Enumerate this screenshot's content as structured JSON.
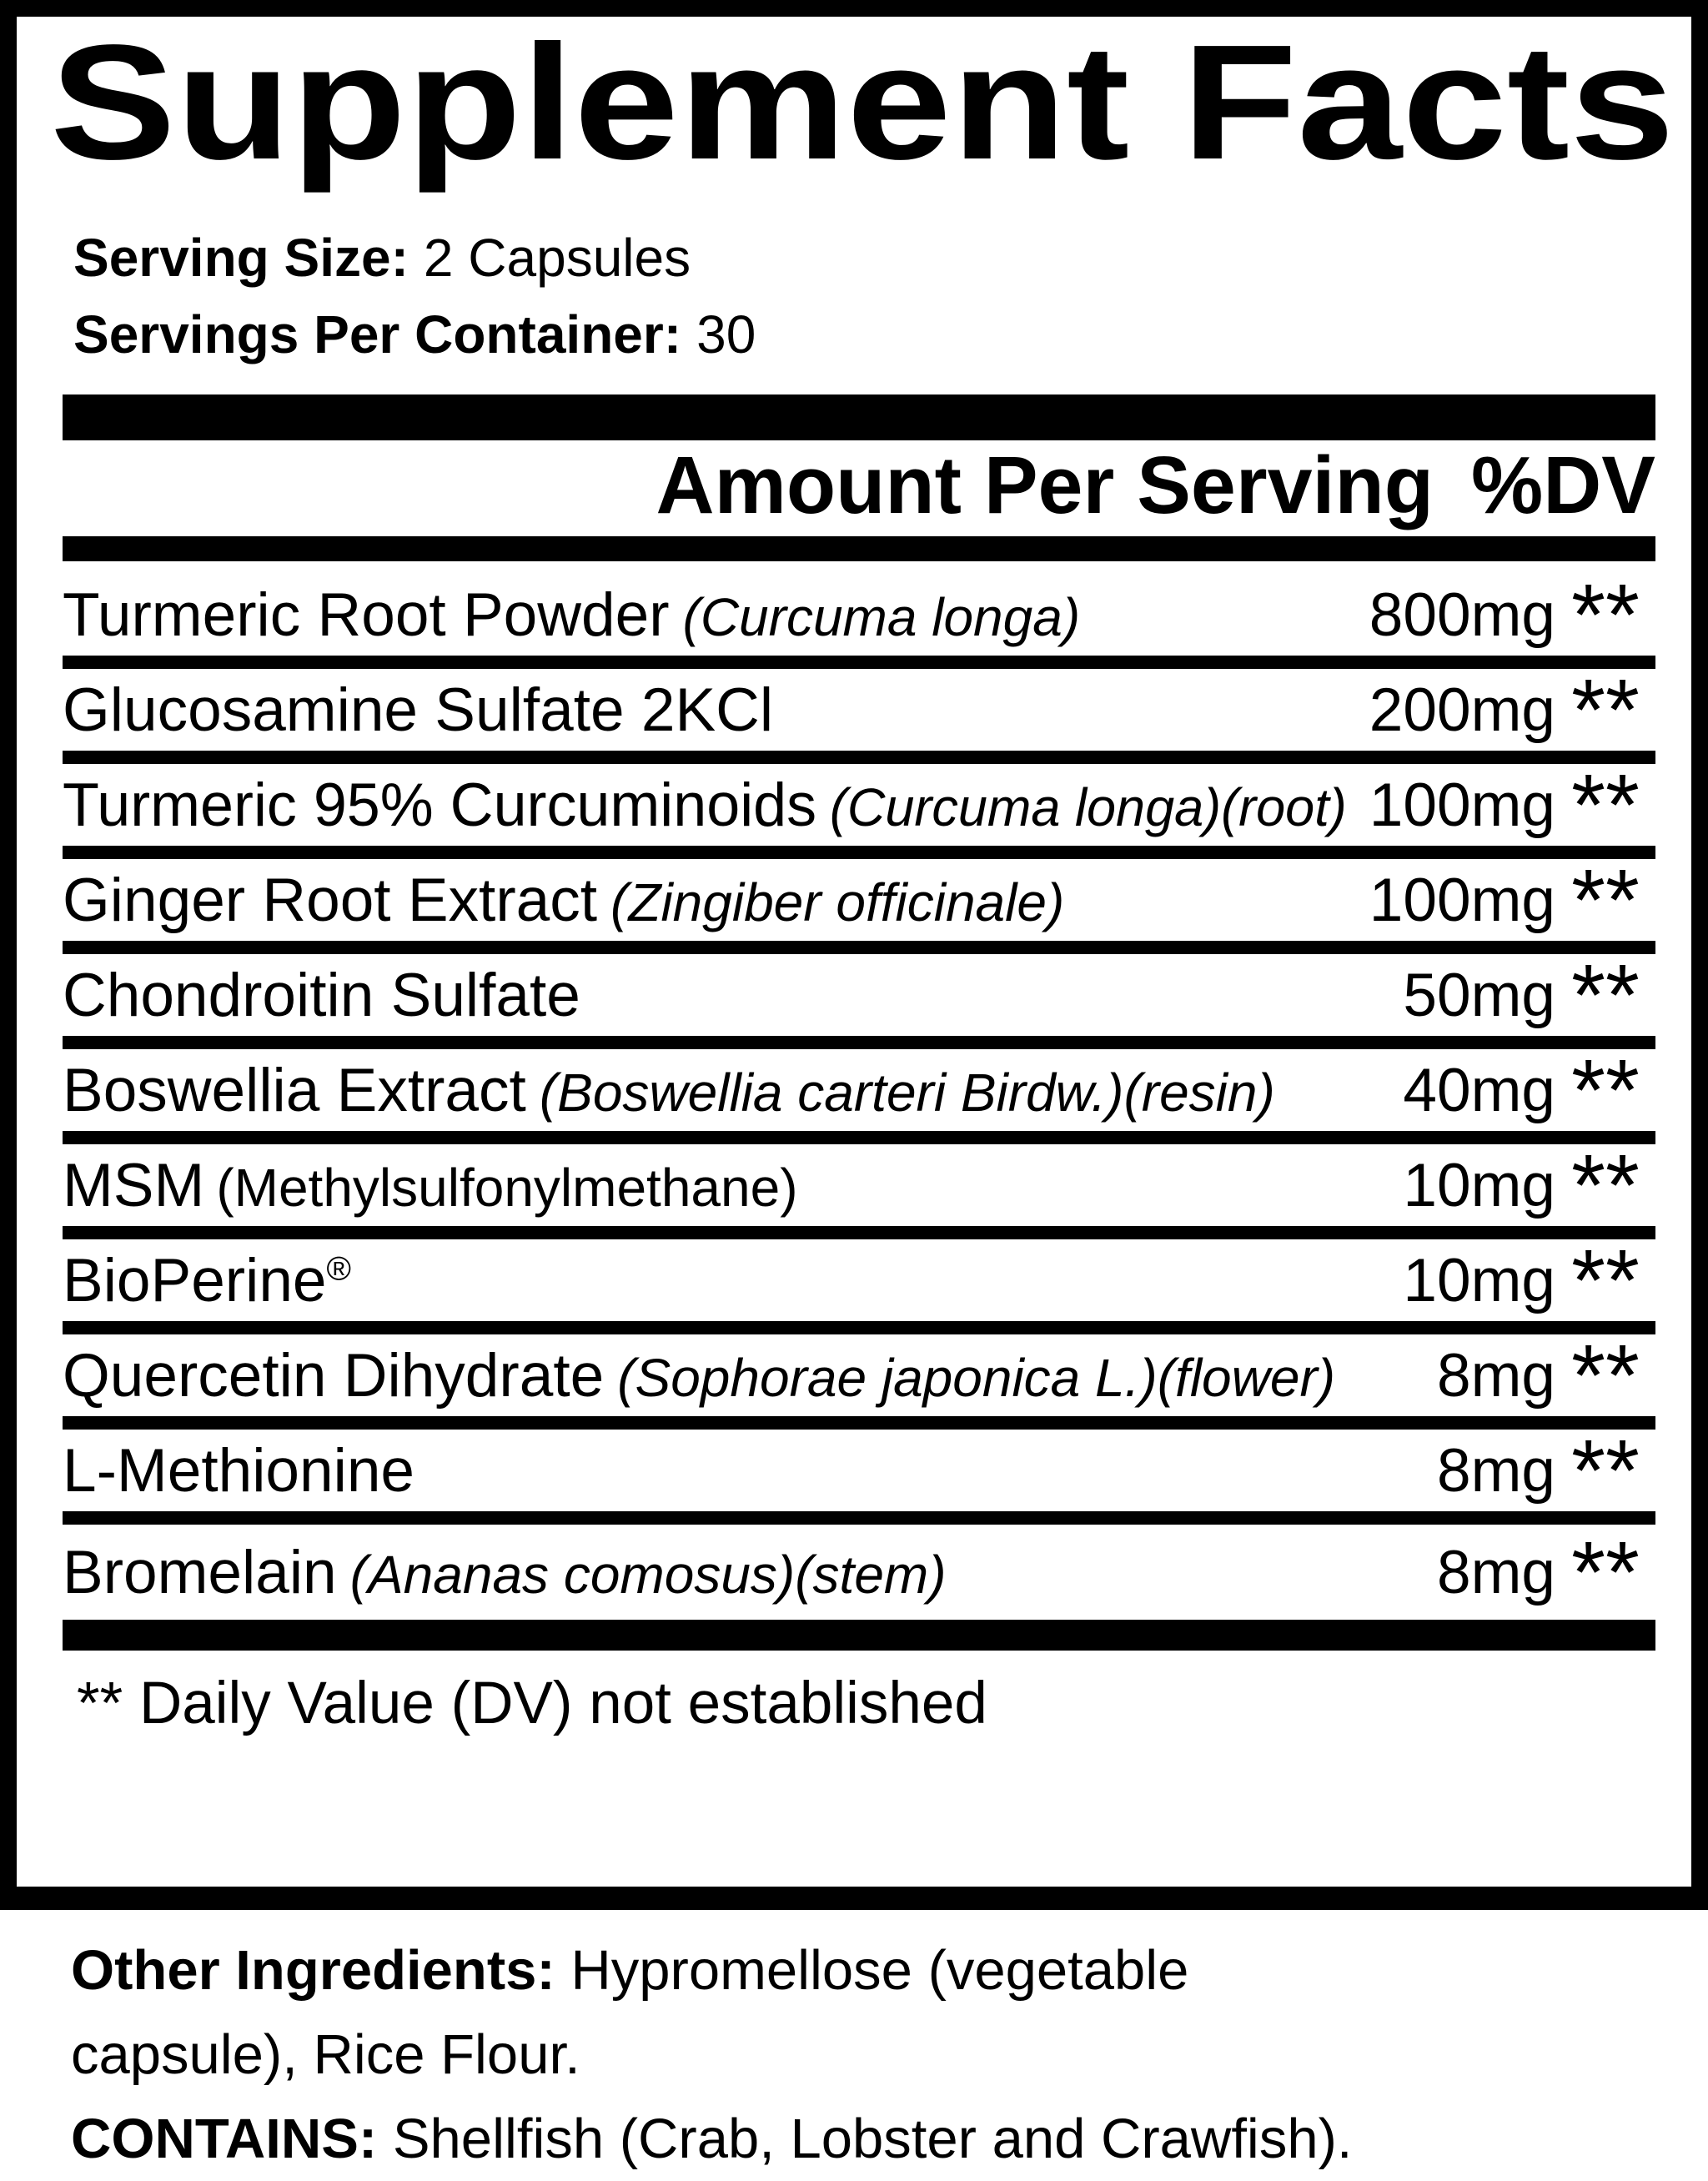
{
  "colors": {
    "ink": "#000000",
    "background": "#ffffff"
  },
  "label": {
    "title": "Supplement Facts",
    "serving_size_label": "Serving Size:",
    "serving_size_value": "2 Capsules",
    "servings_label": "Servings Per Container:",
    "servings_value": "30",
    "header_amount": "Amount Per Serving",
    "header_dv": "%DV",
    "rows": [
      {
        "name": "Turmeric Root Powder",
        "latin": "(Curcuma longa)",
        "amount": "800mg",
        "dv": "**"
      },
      {
        "name": "Glucosamine Sulfate 2KCl",
        "amount": "200mg",
        "dv": "**"
      },
      {
        "name": "Turmeric 95% Curcuminoids",
        "latin": "(Curcuma longa)(root)",
        "amount": "100mg",
        "dv": "**"
      },
      {
        "name": "Ginger Root Extract",
        "latin": "(Zingiber officinale)",
        "amount": "100mg",
        "dv": "**"
      },
      {
        "name": "Chondroitin Sulfate",
        "amount": "50mg",
        "dv": "**"
      },
      {
        "name": "Boswellia Extract",
        "latin": "(Boswellia carteri Birdw.)(resin)",
        "amount": "40mg",
        "dv": "**"
      },
      {
        "name": "MSM",
        "paren": "(Methylsulfonylmethane)",
        "amount": "10mg",
        "dv": "**"
      },
      {
        "name": "BioPerine",
        "sup": "®",
        "amount": "10mg",
        "dv": "**"
      },
      {
        "name": "Quercetin Dihydrate",
        "latin": "(Sophorae japonica L.)(flower)",
        "amount": "8mg",
        "dv": "**"
      },
      {
        "name": "L-Methionine",
        "amount": "8mg",
        "dv": "**"
      },
      {
        "name": "Bromelain",
        "latin": "(Ananas comosus)(stem)",
        "amount": "8mg",
        "dv": "**"
      }
    ],
    "footnote": "** Daily Value (DV) not established"
  },
  "other": {
    "label": "Other Ingredients:",
    "text": "Hypromellose (vegetable capsule), Rice Flour.",
    "contains_label": "CONTAINS:",
    "contains_text": "Shellfish (Crab, Lobster and Crawfish)."
  }
}
